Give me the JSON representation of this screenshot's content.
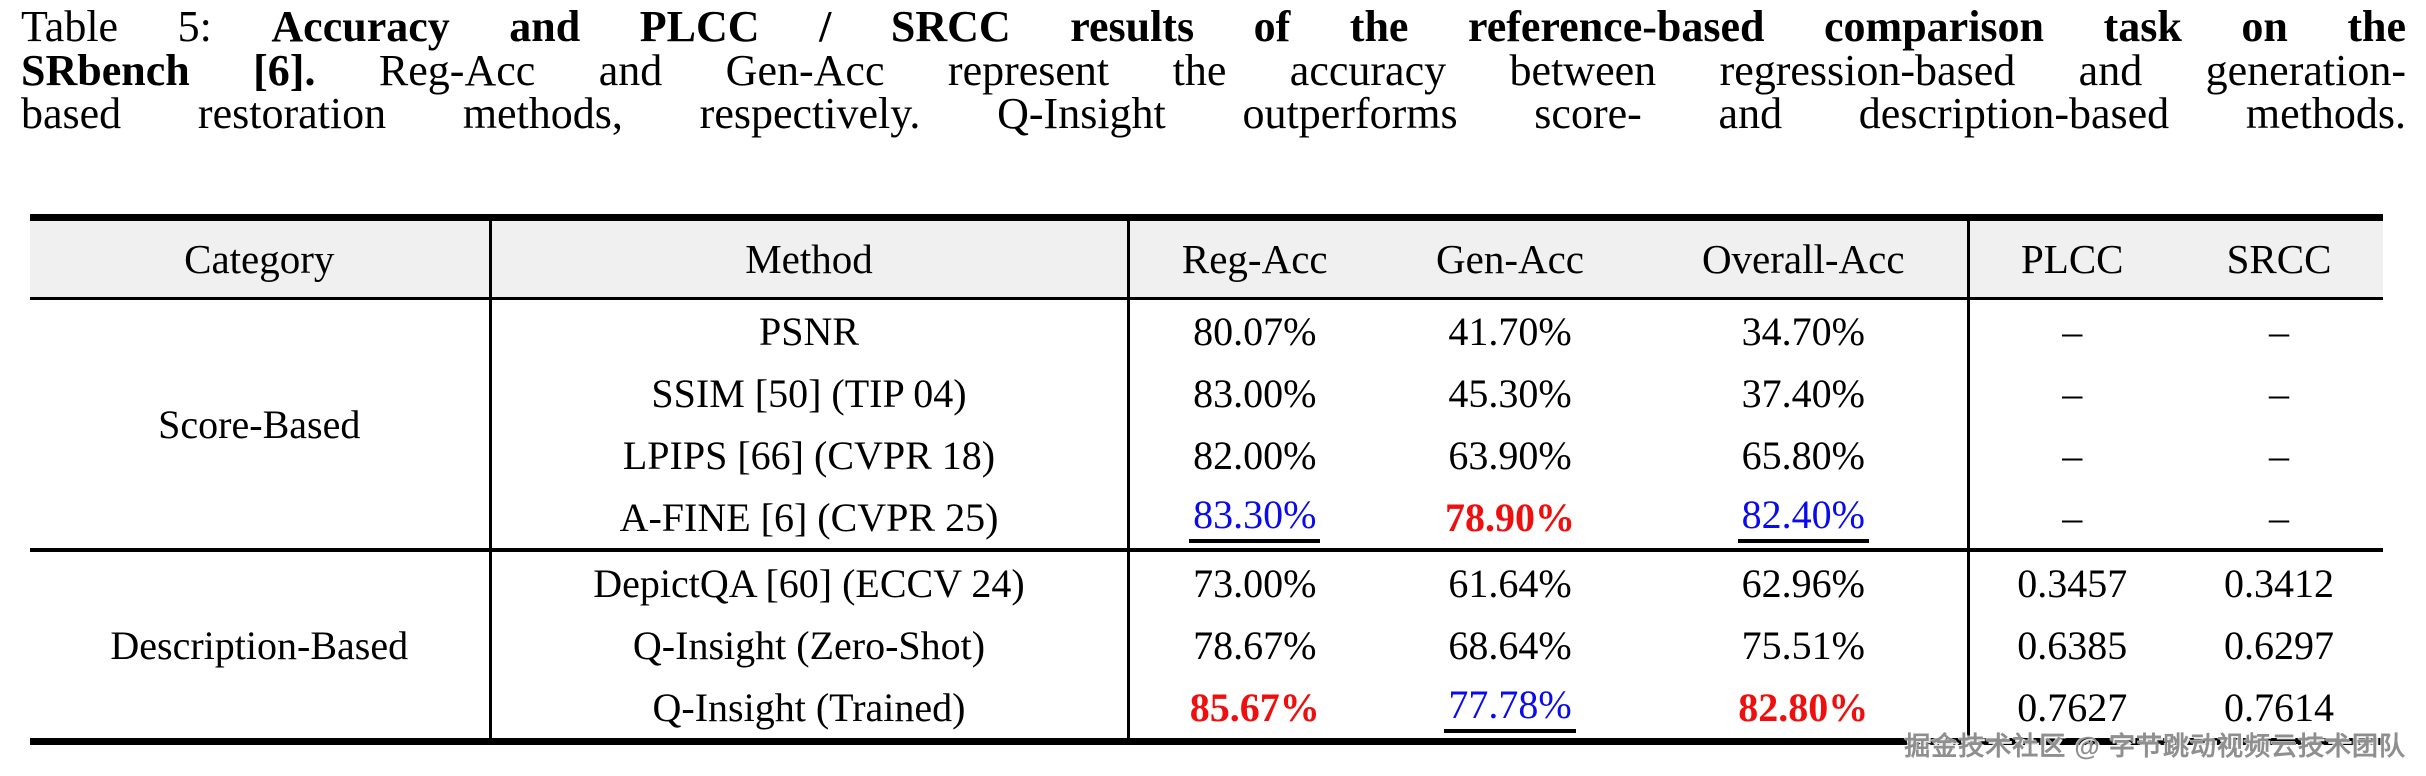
{
  "caption": {
    "lines": [
      [
        {
          "t": "Table 5: ",
          "b": false
        },
        {
          "t": "Accuracy and PLCC / SRCC results of the reference-based comparison task on the",
          "b": true
        }
      ],
      [
        {
          "t": "SRbench [6].",
          "b": true
        },
        {
          "t": " Reg-Acc and Gen-Acc represent the accuracy between regression-based and generation-",
          "b": false
        }
      ],
      [
        {
          "t": "based restoration methods, respectively. Q-Insight outperforms score- and description-based methods.",
          "b": false
        }
      ]
    ]
  },
  "table": {
    "headers": [
      "Category",
      "Method",
      "Reg-Acc",
      "Gen-Acc",
      "Overall-Acc",
      "PLCC",
      "SRCC"
    ],
    "groups": [
      {
        "category": "Score-Based",
        "rows": [
          {
            "method": "PSNR",
            "values": [
              {
                "t": "80.07%"
              },
              {
                "t": "41.70%"
              },
              {
                "t": "34.70%"
              },
              {
                "t": "–"
              },
              {
                "t": "–"
              }
            ]
          },
          {
            "method": "SSIM [50] (TIP 04)",
            "values": [
              {
                "t": "83.00%"
              },
              {
                "t": "45.30%"
              },
              {
                "t": "37.40%"
              },
              {
                "t": "–"
              },
              {
                "t": "–"
              }
            ]
          },
          {
            "method": "LPIPS [66] (CVPR 18)",
            "values": [
              {
                "t": "82.00%"
              },
              {
                "t": "63.90%"
              },
              {
                "t": "65.80%"
              },
              {
                "t": "–"
              },
              {
                "t": "–"
              }
            ]
          },
          {
            "method": "A-FINE [6] (CVPR 25)",
            "values": [
              {
                "t": "83.30%",
                "s": "second"
              },
              {
                "t": "78.90%",
                "s": "best"
              },
              {
                "t": "82.40%",
                "s": "second"
              },
              {
                "t": "–"
              },
              {
                "t": "–"
              }
            ]
          }
        ]
      },
      {
        "category": "Description-Based",
        "rows": [
          {
            "method": "DepictQA [60] (ECCV 24)",
            "values": [
              {
                "t": "73.00%"
              },
              {
                "t": "61.64%"
              },
              {
                "t": "62.96%"
              },
              {
                "t": "0.3457"
              },
              {
                "t": "0.3412"
              }
            ]
          },
          {
            "method": "Q-Insight (Zero-Shot)",
            "values": [
              {
                "t": "78.67%"
              },
              {
                "t": "68.64%"
              },
              {
                "t": "75.51%"
              },
              {
                "t": "0.6385"
              },
              {
                "t": "0.6297"
              }
            ]
          },
          {
            "method": "Q-Insight (Trained)",
            "values": [
              {
                "t": "85.67%",
                "s": "best"
              },
              {
                "t": "77.78%",
                "s": "second"
              },
              {
                "t": "82.80%",
                "s": "best"
              },
              {
                "t": "0.7627"
              },
              {
                "t": "0.7614"
              }
            ]
          }
        ]
      }
    ]
  },
  "watermark": {
    "text": "掘金技术社区 @ 字节跳动视频云技术团队"
  },
  "colors": {
    "best": "#ee0f0f",
    "second": "#0a0aee",
    "header_bg": "#f0f0f0",
    "rule": "#000000",
    "watermark": "#8f8f8f"
  }
}
